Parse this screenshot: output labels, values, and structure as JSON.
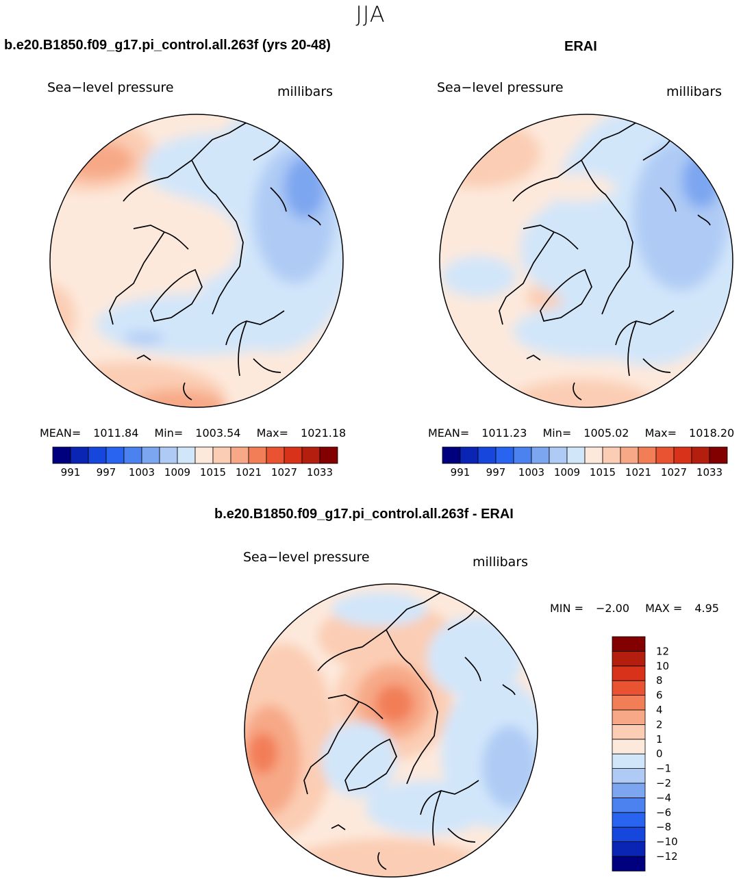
{
  "figure": {
    "season": "JJA",
    "diff_title": "b.e20.B1850.f09_g17.pi_control.all.263f - ERAI"
  },
  "colors": {
    "abs_scale": [
      "#00007f",
      "#0a24b4",
      "#1646dc",
      "#2864f0",
      "#4b82f0",
      "#7da6f0",
      "#afcbf5",
      "#d2e6fa",
      "#fde9dc",
      "#fbcdb4",
      "#f7a987",
      "#f27e58",
      "#ea5331",
      "#d8321a",
      "#b41e0f",
      "#820000"
    ],
    "diff_scale": [
      "#00007f",
      "#0a24b4",
      "#1646dc",
      "#2864f0",
      "#4b82f0",
      "#7da6f0",
      "#afcbf5",
      "#d2e6fa",
      "#fde9dc",
      "#fbcdb4",
      "#f7a987",
      "#f27e58",
      "#ea5331",
      "#d8321a",
      "#b41e0f",
      "#820000"
    ],
    "coast": "#000000"
  },
  "chart_data": [
    {
      "type": "heatmap",
      "projection": "north polar stereographic",
      "title": "b.e20.B1850.f09_g17.pi_control.all.263f (yrs 20-48)",
      "variable": "Sea−level pressure",
      "units": "millibars",
      "stats": {
        "mean_label": "MEAN=",
        "mean": "1011.84",
        "min_label": "Min=",
        "min": "1003.54",
        "max_label": "Max=",
        "max": "1021.18"
      },
      "levels": [
        991,
        994,
        997,
        1000,
        1003,
        1006,
        1009,
        1012,
        1015,
        1018,
        1021,
        1024,
        1027,
        1030,
        1033
      ],
      "colorbar_labels": [
        "991",
        "997",
        "1003",
        "1009",
        "1015",
        "1021",
        "1027",
        "1033"
      ]
    },
    {
      "type": "heatmap",
      "projection": "north polar stereographic",
      "title": "ERAI",
      "variable": "Sea−level pressure",
      "units": "millibars",
      "stats": {
        "mean_label": "MEAN=",
        "mean": "1011.23",
        "min_label": "Min=",
        "min": "1005.02",
        "max_label": "Max=",
        "max": "1018.20"
      },
      "levels": [
        991,
        994,
        997,
        1000,
        1003,
        1006,
        1009,
        1012,
        1015,
        1018,
        1021,
        1024,
        1027,
        1030,
        1033
      ],
      "colorbar_labels": [
        "991",
        "997",
        "1003",
        "1009",
        "1015",
        "1021",
        "1027",
        "1033"
      ]
    },
    {
      "type": "heatmap",
      "projection": "north polar stereographic",
      "title": "b.e20.B1850.f09_g17.pi_control.all.263f - ERAI",
      "variable": "Sea−level pressure",
      "units": "millibars",
      "stats": {
        "min_label": "MIN =",
        "min": "−2.00",
        "max_label": "MAX =",
        "max": "4.95"
      },
      "levels": [
        -12,
        -10,
        -8,
        -6,
        -4,
        -2,
        -1,
        0,
        1,
        2,
        4,
        6,
        8,
        10,
        12
      ],
      "colorbar_labels": [
        "12",
        "10",
        "8",
        "6",
        "4",
        "2",
        "1",
        "0",
        "−1",
        "−2",
        "−4",
        "−6",
        "−8",
        "−10",
        "−12"
      ]
    }
  ]
}
